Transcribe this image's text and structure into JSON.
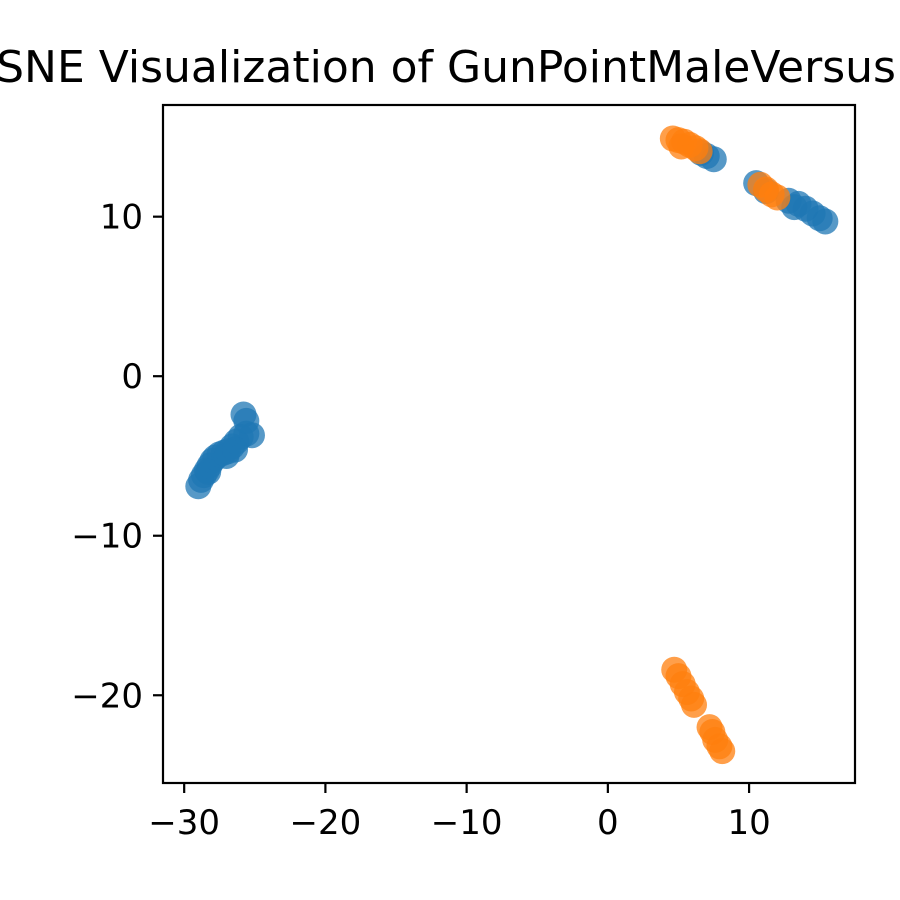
{
  "chart_data": {
    "type": "scatter",
    "title": "t-SNE Visualization of GunPointMaleVersusFemale",
    "xlabel": "",
    "ylabel": "",
    "xlim": [
      -31.5,
      17.5
    ],
    "ylim": [
      -25.5,
      17
    ],
    "x_ticks": [
      -30,
      -20,
      -10,
      0,
      10
    ],
    "x_tick_labels": [
      "−30",
      "−20",
      "−10",
      "0",
      "10"
    ],
    "y_ticks": [
      -20,
      -10,
      0,
      10
    ],
    "y_tick_labels": [
      "−20",
      "−10",
      "0",
      "10"
    ],
    "grid": false,
    "legend": "none",
    "series": [
      {
        "color": "#1f77b4",
        "points": [
          [
            -29.0,
            -6.9
          ],
          [
            -28.8,
            -6.5
          ],
          [
            -28.6,
            -6.2
          ],
          [
            -28.4,
            -5.9
          ],
          [
            -28.2,
            -5.6
          ],
          [
            -28.0,
            -5.3
          ],
          [
            -27.8,
            -5.1
          ],
          [
            -27.5,
            -4.9
          ],
          [
            -27.2,
            -4.8
          ],
          [
            -26.9,
            -4.7
          ],
          [
            -26.6,
            -4.4
          ],
          [
            -26.3,
            -4.1
          ],
          [
            -26.0,
            -3.8
          ],
          [
            -25.6,
            -3.6
          ],
          [
            -25.2,
            -3.7
          ],
          [
            -25.8,
            -2.4
          ],
          [
            -25.6,
            -2.8
          ],
          [
            -28.3,
            -6.0
          ],
          [
            -27.0,
            -5.0
          ],
          [
            -26.4,
            -4.6
          ],
          [
            13.5,
            10.8
          ],
          [
            14.0,
            10.5
          ],
          [
            14.5,
            10.2
          ],
          [
            15.0,
            9.9
          ],
          [
            15.4,
            9.7
          ],
          [
            12.8,
            11.0
          ],
          [
            13.2,
            10.6
          ],
          [
            10.5,
            12.1
          ],
          [
            11.2,
            11.6
          ],
          [
            7.0,
            13.8
          ],
          [
            7.5,
            13.6
          ],
          [
            6.6,
            14.0
          ]
        ]
      },
      {
        "color": "#ff7f0e",
        "points": [
          [
            4.6,
            14.9
          ],
          [
            5.0,
            14.8
          ],
          [
            5.4,
            14.7
          ],
          [
            5.8,
            14.5
          ],
          [
            6.2,
            14.3
          ],
          [
            6.5,
            14.1
          ],
          [
            5.2,
            14.4
          ],
          [
            10.8,
            12.0
          ],
          [
            11.2,
            11.7
          ],
          [
            11.6,
            11.4
          ],
          [
            12.0,
            11.2
          ],
          [
            4.7,
            -18.4
          ],
          [
            5.0,
            -18.8
          ],
          [
            5.3,
            -19.3
          ],
          [
            5.6,
            -19.8
          ],
          [
            5.9,
            -20.2
          ],
          [
            6.1,
            -20.6
          ],
          [
            7.4,
            -22.3
          ],
          [
            7.6,
            -22.8
          ],
          [
            7.9,
            -23.2
          ],
          [
            8.1,
            -23.5
          ],
          [
            7.2,
            -22.0
          ]
        ]
      }
    ]
  }
}
